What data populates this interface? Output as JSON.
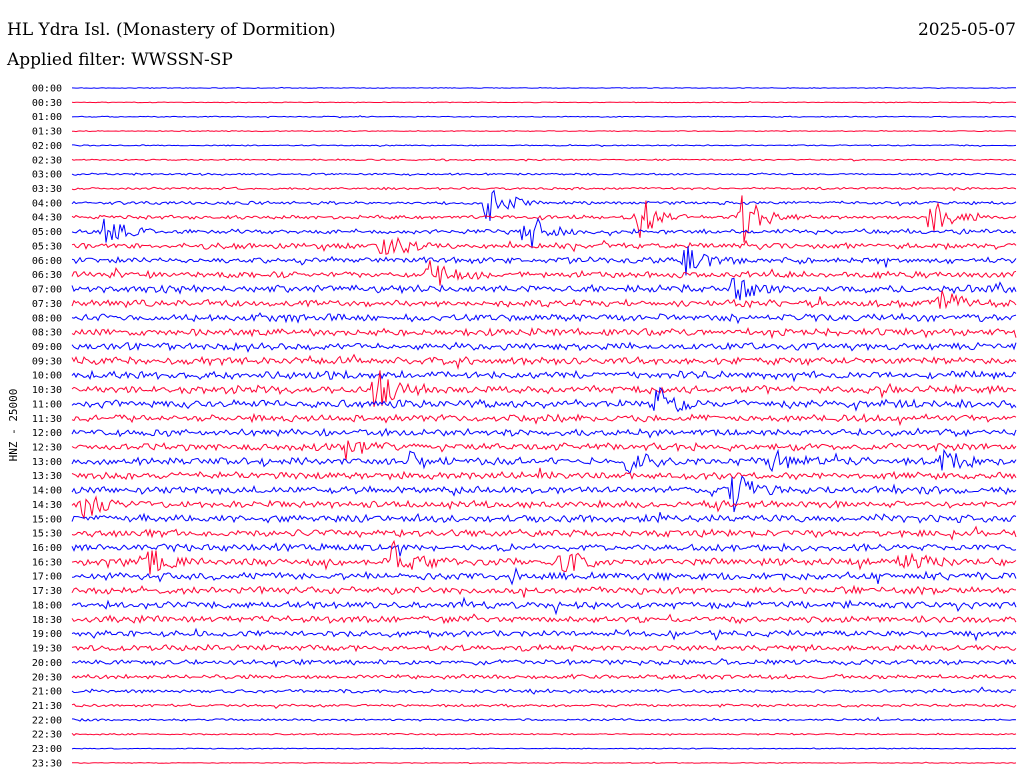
{
  "header": {
    "station": "HL Ydra Isl. (Monastery of Dormition)",
    "date": "2025-05-07",
    "filter": "Applied filter: WWSSN-SP"
  },
  "colors": {
    "even_row": "#0000ff",
    "odd_row": "#ff0033"
  },
  "chart_data": {
    "type": "line",
    "title": "HL Ydra Isl. (Monastery of Dormition)",
    "subtitle": "Applied filter: WWSSN-SP",
    "ylabel": "HNZ - 25000",
    "xlabel": "",
    "row_labels": [
      "00:00",
      "00:30",
      "01:00",
      "01:30",
      "02:00",
      "02:30",
      "03:00",
      "03:30",
      "04:00",
      "04:30",
      "05:00",
      "05:30",
      "06:00",
      "06:30",
      "07:00",
      "07:30",
      "08:00",
      "08:30",
      "09:00",
      "09:30",
      "10:00",
      "10:30",
      "11:00",
      "11:30",
      "12:00",
      "12:30",
      "13:00",
      "13:30",
      "14:00",
      "14:30",
      "15:00",
      "15:30",
      "16:00",
      "16:30",
      "17:00",
      "17:30",
      "18:00",
      "18:30",
      "19:00",
      "19:30",
      "20:00",
      "20:30",
      "21:00",
      "21:30",
      "22:00",
      "22:30",
      "23:00",
      "23:30"
    ],
    "row_colors": "alternating blue / red",
    "noise_amplitude_per_row": [
      0.3,
      0.3,
      0.4,
      0.4,
      0.5,
      0.6,
      0.8,
      1.0,
      1.3,
      1.6,
      2.0,
      2.4,
      2.6,
      2.8,
      3.0,
      3.0,
      3.0,
      3.0,
      3.0,
      3.1,
      3.2,
      3.2,
      3.2,
      3.0,
      3.0,
      3.0,
      3.0,
      3.0,
      3.0,
      3.0,
      3.0,
      3.0,
      3.0,
      3.0,
      3.0,
      3.0,
      2.9,
      2.8,
      2.6,
      2.4,
      2.1,
      1.8,
      1.5,
      1.2,
      0.9,
      0.6,
      0.4,
      0.3
    ],
    "events": [
      {
        "row": 10,
        "x_frac": 0.03,
        "amp": 22
      },
      {
        "row": 8,
        "x_frac": 0.44,
        "amp": 26
      },
      {
        "row": 10,
        "x_frac": 0.48,
        "amp": 24
      },
      {
        "row": 9,
        "x_frac": 0.6,
        "amp": 22
      },
      {
        "row": 9,
        "x_frac": 0.71,
        "amp": 26
      },
      {
        "row": 9,
        "x_frac": 0.91,
        "amp": 18
      },
      {
        "row": 11,
        "x_frac": 0.33,
        "amp": 16
      },
      {
        "row": 12,
        "x_frac": 0.65,
        "amp": 14
      },
      {
        "row": 13,
        "x_frac": 0.38,
        "amp": 18
      },
      {
        "row": 14,
        "x_frac": 0.7,
        "amp": 14
      },
      {
        "row": 15,
        "x_frac": 0.92,
        "amp": 12
      },
      {
        "row": 21,
        "x_frac": 0.32,
        "amp": 24
      },
      {
        "row": 22,
        "x_frac": 0.62,
        "amp": 16
      },
      {
        "row": 25,
        "x_frac": 0.29,
        "amp": 12
      },
      {
        "row": 26,
        "x_frac": 0.36,
        "amp": 10
      },
      {
        "row": 26,
        "x_frac": 0.59,
        "amp": 12
      },
      {
        "row": 26,
        "x_frac": 0.74,
        "amp": 12
      },
      {
        "row": 26,
        "x_frac": 0.92,
        "amp": 12
      },
      {
        "row": 28,
        "x_frac": 0.7,
        "amp": 20
      },
      {
        "row": 29,
        "x_frac": 0.01,
        "amp": 16
      },
      {
        "row": 33,
        "x_frac": 0.08,
        "amp": 16
      },
      {
        "row": 33,
        "x_frac": 0.34,
        "amp": 18
      },
      {
        "row": 33,
        "x_frac": 0.52,
        "amp": 16
      },
      {
        "row": 33,
        "x_frac": 0.88,
        "amp": 18
      }
    ]
  }
}
